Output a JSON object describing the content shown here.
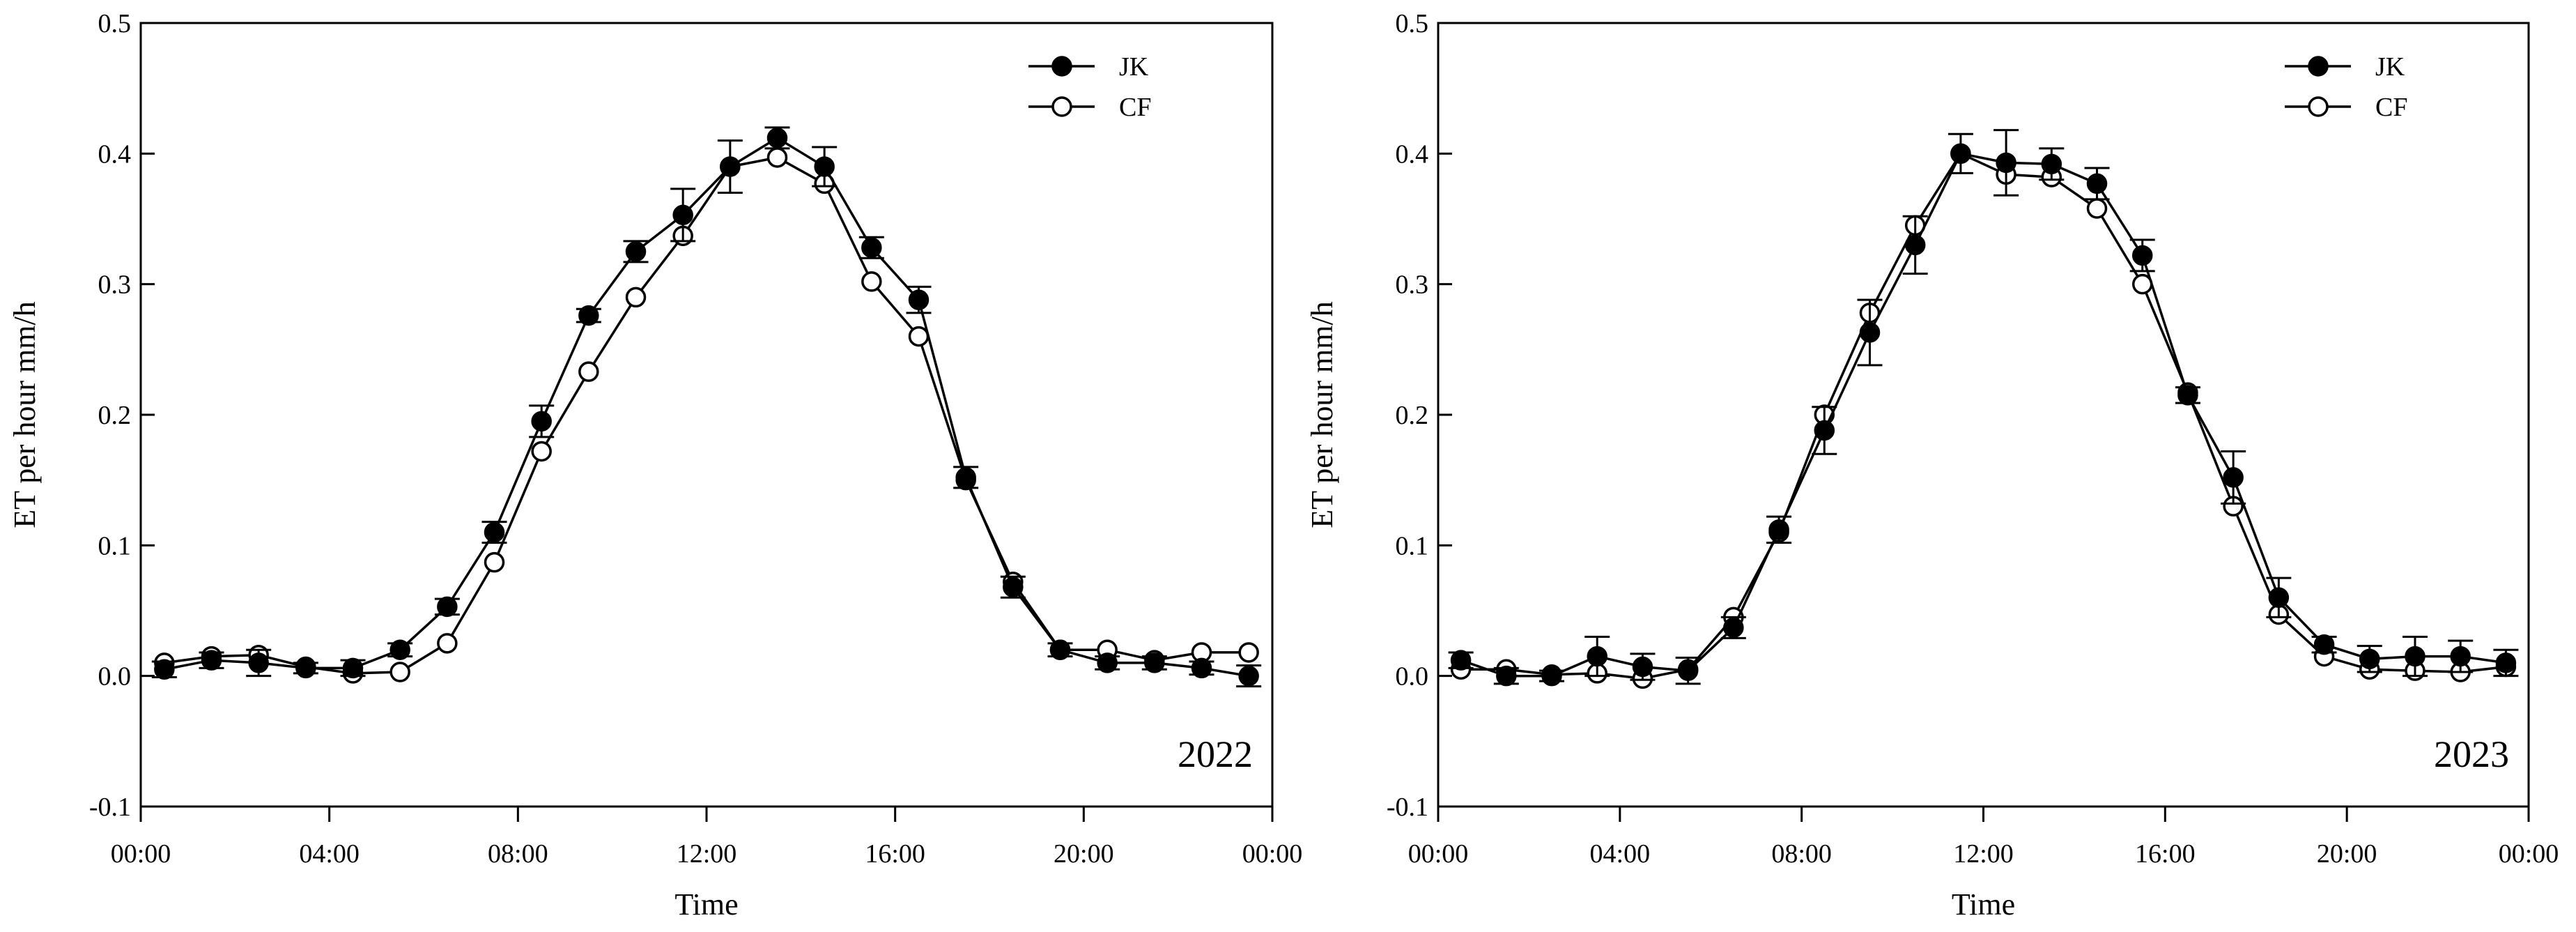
{
  "chart_data": [
    {
      "type": "line",
      "xlabel": "Time",
      "ylabel": "ET per hour mm/h",
      "annotation": "2022",
      "x_tick_labels": [
        "00:00",
        "04:00",
        "08:00",
        "12:00",
        "16:00",
        "20:00",
        "00:00"
      ],
      "y_tick_labels": [
        "-0.1",
        "0.0",
        "0.1",
        "0.2",
        "0.3",
        "0.4",
        "0.5"
      ],
      "xlim": [
        0,
        24
      ],
      "ylim": [
        -0.1,
        0.5
      ],
      "legend_position": "top-right",
      "x": [
        0.5,
        1.5,
        2.5,
        3.5,
        4.5,
        5.5,
        6.5,
        7.5,
        8.5,
        9.5,
        10.5,
        11.5,
        12.5,
        13.5,
        14.5,
        15.5,
        16.5,
        17.5,
        18.5,
        19.5,
        20.5,
        21.5,
        22.5,
        23.5
      ],
      "series": [
        {
          "name": "JK",
          "marker": "filled-circle",
          "values": [
            0.005,
            0.012,
            0.01,
            0.006,
            0.006,
            0.02,
            0.053,
            0.11,
            0.195,
            0.276,
            0.325,
            0.353,
            0.39,
            0.412,
            0.39,
            0.328,
            0.288,
            0.152,
            0.068,
            0.02,
            0.01,
            0.01,
            0.006,
            0.0
          ],
          "errors": [
            0.006,
            0.006,
            0.01,
            0.004,
            0.006,
            0.005,
            0.006,
            0.008,
            0.012,
            0.005,
            0.008,
            0.02,
            0.02,
            0.008,
            0.015,
            0.008,
            0.01,
            0.008,
            0.008,
            0.005,
            0.005,
            0.005,
            0.005,
            0.008
          ]
        },
        {
          "name": "CF",
          "marker": "open-circle",
          "values": [
            0.01,
            0.015,
            0.016,
            0.007,
            0.002,
            0.003,
            0.025,
            0.087,
            0.172,
            0.233,
            0.29,
            0.337,
            0.39,
            0.397,
            0.377,
            0.302,
            0.26,
            0.15,
            0.072,
            0.02,
            0.02,
            0.012,
            0.018,
            0.018
          ]
        }
      ]
    },
    {
      "type": "line",
      "xlabel": "Time",
      "ylabel": "ET per hour mm/h",
      "annotation": "2023",
      "x_tick_labels": [
        "00:00",
        "04:00",
        "08:00",
        "12:00",
        "16:00",
        "20:00",
        "00:00"
      ],
      "y_tick_labels": [
        "-0.1",
        "0.0",
        "0.1",
        "0.2",
        "0.3",
        "0.4",
        "0.5"
      ],
      "xlim": [
        0,
        24
      ],
      "ylim": [
        -0.1,
        0.5
      ],
      "legend_position": "top-right",
      "x": [
        0.5,
        1.5,
        2.5,
        3.5,
        4.5,
        5.5,
        6.5,
        7.5,
        8.5,
        9.5,
        10.5,
        11.5,
        12.5,
        13.5,
        14.5,
        15.5,
        16.5,
        17.5,
        18.5,
        19.5,
        20.5,
        21.5,
        22.5,
        23.5
      ],
      "series": [
        {
          "name": "JK",
          "marker": "filled-circle",
          "values": [
            0.012,
            0.0,
            0.0,
            0.015,
            0.007,
            0.004,
            0.037,
            0.112,
            0.188,
            0.263,
            0.33,
            0.4,
            0.393,
            0.392,
            0.377,
            0.322,
            0.215,
            0.152,
            0.06,
            0.024,
            0.013,
            0.015,
            0.015,
            0.01
          ],
          "errors": [
            0.006,
            0.006,
            0.004,
            0.015,
            0.01,
            0.01,
            0.008,
            0.01,
            0.018,
            0.025,
            0.022,
            0.015,
            0.025,
            0.012,
            0.012,
            0.012,
            0.006,
            0.02,
            0.015,
            0.006,
            0.01,
            0.015,
            0.012,
            0.01
          ]
        },
        {
          "name": "CF",
          "marker": "open-circle",
          "values": [
            0.005,
            0.005,
            0.001,
            0.002,
            -0.002,
            0.005,
            0.045,
            0.11,
            0.2,
            0.278,
            0.345,
            0.4,
            0.384,
            0.382,
            0.358,
            0.3,
            0.217,
            0.13,
            0.047,
            0.015,
            0.005,
            0.004,
            0.003,
            0.007
          ]
        }
      ]
    }
  ]
}
